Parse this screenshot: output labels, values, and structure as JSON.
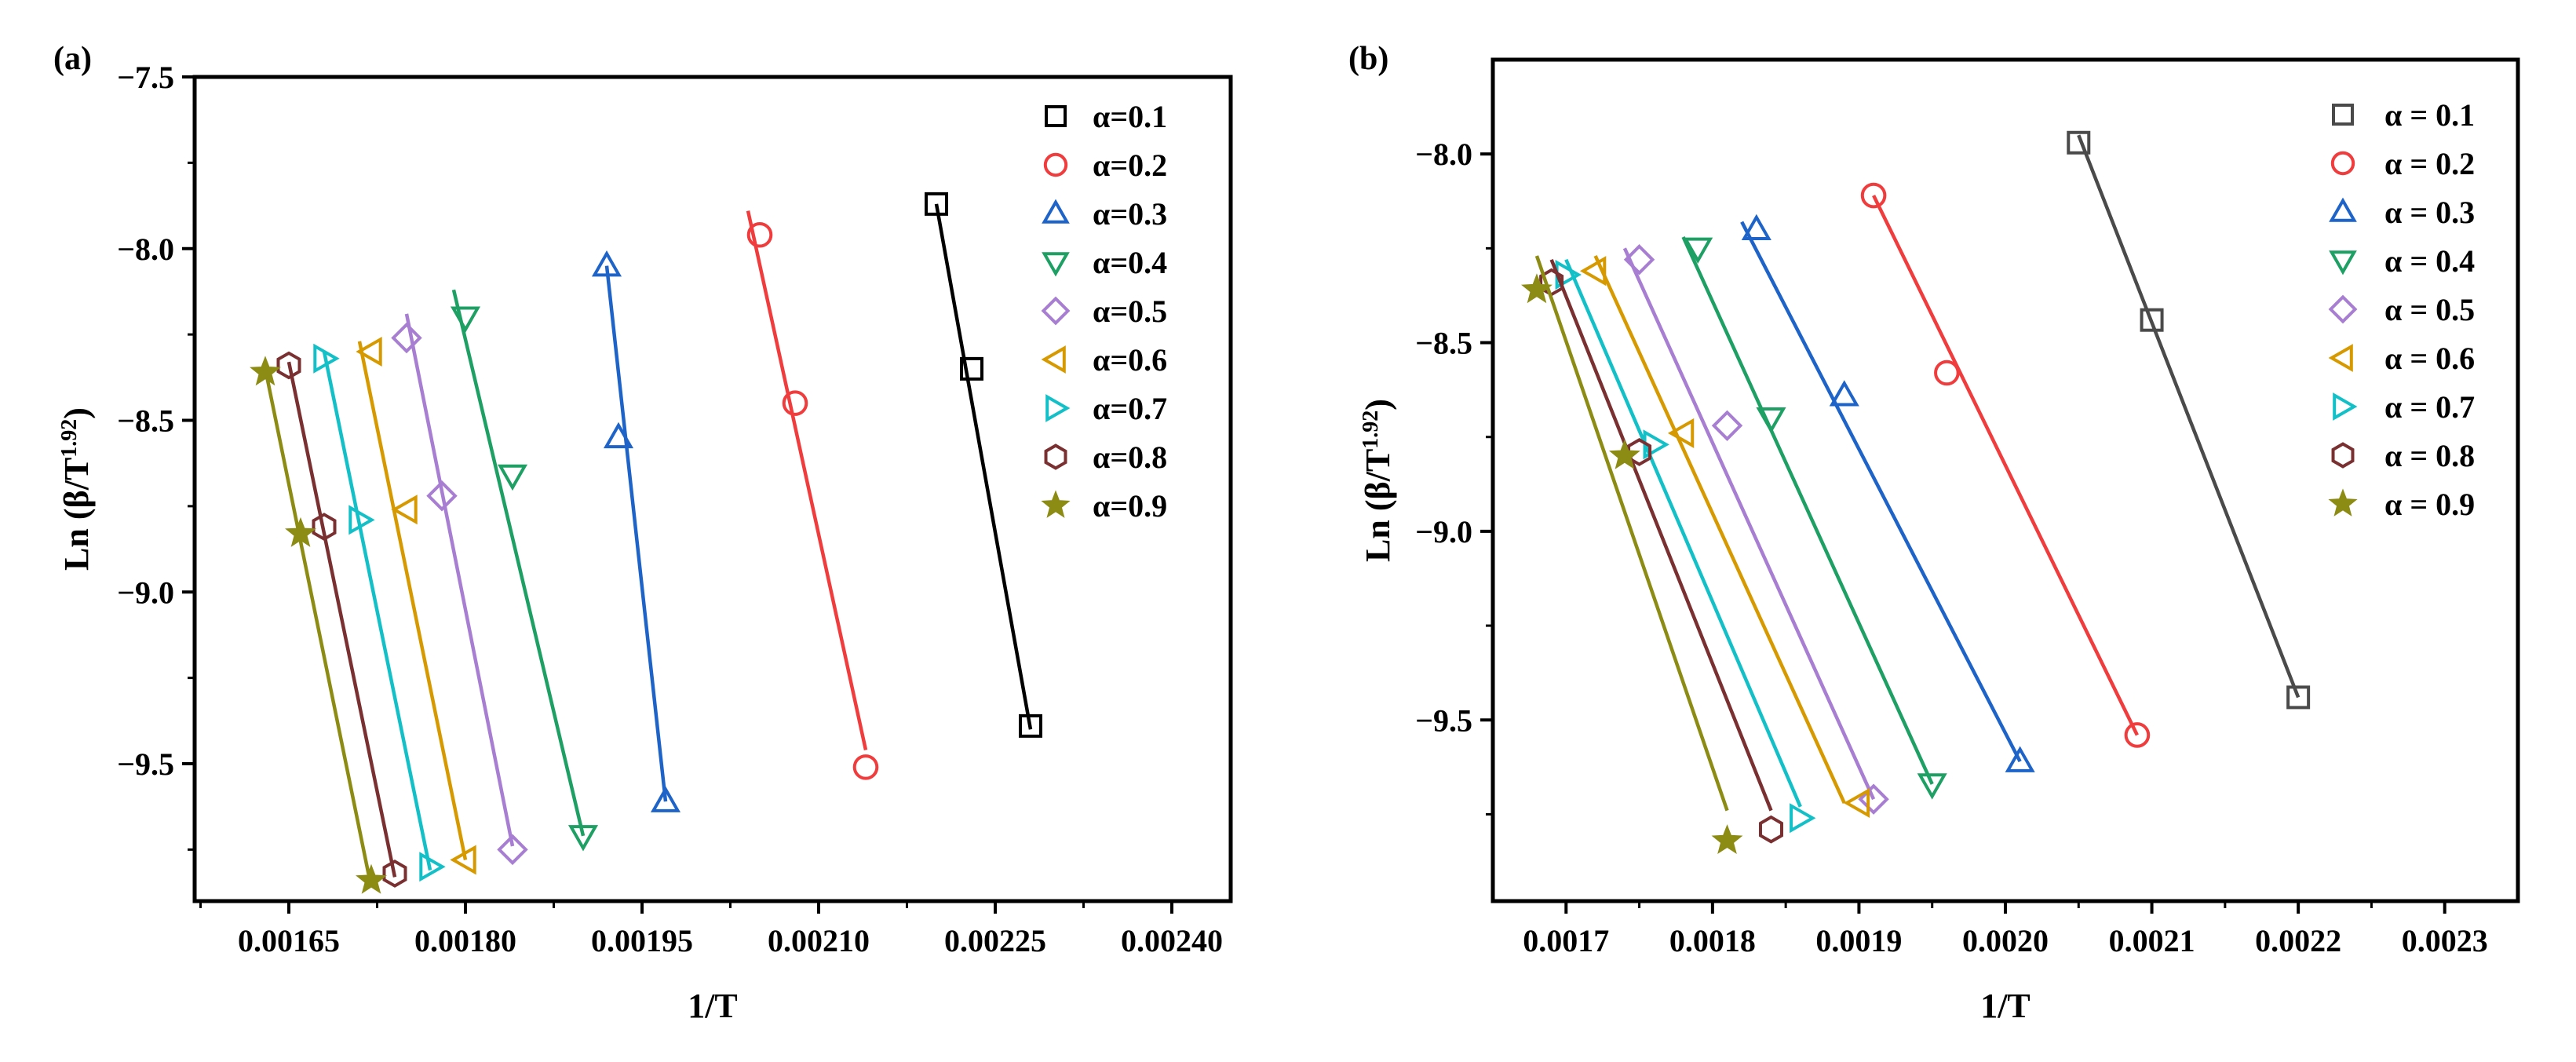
{
  "chart_data": [
    {
      "type": "line",
      "panel_label": "(a)",
      "xlabel": "1/T",
      "ylabel_main": "Ln (β/T",
      "ylabel_sup": "1.92",
      "ylabel_close": ")",
      "xlim": [
        0.00157,
        0.00245
      ],
      "ylim": [
        -9.9,
        -7.5
      ],
      "xticks": [
        0.00165,
        0.0018,
        0.00195,
        0.0021,
        0.00225,
        0.0024
      ],
      "xtick_labels": [
        "0.00165",
        "0.00180",
        "0.00195",
        "0.00210",
        "0.00225",
        "0.00240"
      ],
      "yticks": [
        -7.5,
        -8.0,
        -8.5,
        -9.0,
        -9.5
      ],
      "ytick_labels": [
        "−7.5",
        "−8.0",
        "−8.5",
        "−9.0",
        "−9.5"
      ],
      "legend_position": "top-right",
      "series": [
        {
          "name": "α=0.1",
          "color": "#000000",
          "marker": "square",
          "points": [
            [
              0.0022,
              -7.87
            ],
            [
              0.00223,
              -8.35
            ],
            [
              0.00228,
              -9.39
            ]
          ],
          "fit": [
            [
              0.0022,
              -7.87
            ],
            [
              0.00228,
              -9.4
            ]
          ]
        },
        {
          "name": "α=0.2",
          "color": "#f03c3c",
          "marker": "circle",
          "points": [
            [
              0.00205,
              -7.96
            ],
            [
              0.00208,
              -8.45
            ],
            [
              0.00214,
              -9.51
            ]
          ],
          "fit": [
            [
              0.00204,
              -7.89
            ],
            [
              0.00214,
              -9.46
            ]
          ]
        },
        {
          "name": "α=0.3",
          "color": "#1e64c8",
          "marker": "triangle-up",
          "points": [
            [
              0.00192,
              -8.05
            ],
            [
              0.00193,
              -8.55
            ],
            [
              0.00197,
              -9.61
            ]
          ],
          "fit": [
            [
              0.00192,
              -8.05
            ],
            [
              0.00197,
              -9.61
            ]
          ]
        },
        {
          "name": "α=0.4",
          "color": "#1ea064",
          "marker": "triangle-down",
          "points": [
            [
              0.0018,
              -8.2
            ],
            [
              0.00184,
              -8.66
            ],
            [
              0.0019,
              -9.71
            ]
          ],
          "fit": [
            [
              0.00179,
              -8.12
            ],
            [
              0.0019,
              -9.71
            ]
          ]
        },
        {
          "name": "α=0.5",
          "color": "#a87ed2",
          "marker": "diamond",
          "points": [
            [
              0.00175,
              -8.26
            ],
            [
              0.00178,
              -8.72
            ],
            [
              0.00184,
              -9.75
            ]
          ],
          "fit": [
            [
              0.00175,
              -8.19
            ],
            [
              0.00184,
              -9.74
            ]
          ]
        },
        {
          "name": "α=0.6",
          "color": "#d69a00",
          "marker": "triangle-left",
          "points": [
            [
              0.00172,
              -8.3
            ],
            [
              0.00175,
              -8.76
            ],
            [
              0.0018,
              -9.78
            ]
          ],
          "fit": [
            [
              0.00171,
              -8.27
            ],
            [
              0.0018,
              -9.78
            ]
          ]
        },
        {
          "name": "α=0.7",
          "color": "#14c0c8",
          "marker": "triangle-right",
          "points": [
            [
              0.00168,
              -8.32
            ],
            [
              0.00171,
              -8.79
            ],
            [
              0.00177,
              -9.8
            ]
          ],
          "fit": [
            [
              0.00168,
              -8.3
            ],
            [
              0.00177,
              -9.81
            ]
          ]
        },
        {
          "name": "α=0.8",
          "color": "#7a3030",
          "marker": "hexagon",
          "points": [
            [
              0.00165,
              -8.34
            ],
            [
              0.00168,
              -8.81
            ],
            [
              0.00174,
              -9.82
            ]
          ],
          "fit": [
            [
              0.00165,
              -8.33
            ],
            [
              0.00174,
              -9.83
            ]
          ]
        },
        {
          "name": "α=0.9",
          "color": "#8c8c14",
          "marker": "star",
          "points": [
            [
              0.00163,
              -8.36
            ],
            [
              0.00166,
              -8.83
            ],
            [
              0.00172,
              -9.84
            ]
          ],
          "fit": [
            [
              0.00163,
              -8.35
            ],
            [
              0.00172,
              -9.86
            ]
          ]
        }
      ]
    },
    {
      "type": "line",
      "panel_label": "(b)",
      "xlabel": "1/T",
      "ylabel_main": "Ln (β/T",
      "ylabel_sup": "1.92",
      "ylabel_close": ")",
      "xlim": [
        0.00165,
        0.00235
      ],
      "ylim": [
        -9.98,
        -7.75
      ],
      "xticks": [
        0.0017,
        0.0018,
        0.0019,
        0.002,
        0.0021,
        0.0022,
        0.0023
      ],
      "xtick_labels": [
        "0.0017",
        "0.0018",
        "0.0019",
        "0.0020",
        "0.0021",
        "0.0022",
        "0.0023"
      ],
      "yticks": [
        -8.0,
        -8.5,
        -9.0,
        -9.5
      ],
      "ytick_labels": [
        "−8.0",
        "−8.5",
        "−9.0",
        "−9.5"
      ],
      "legend_position": "top-right",
      "series": [
        {
          "name": "α = 0.1",
          "color": "#4a4a4a",
          "marker": "square",
          "points": [
            [
              0.00205,
              -7.97
            ],
            [
              0.0021,
              -8.44
            ],
            [
              0.0022,
              -9.44
            ]
          ],
          "fit": [
            [
              0.00205,
              -7.95
            ],
            [
              0.0022,
              -9.44
            ]
          ]
        },
        {
          "name": "α = 0.2",
          "color": "#f03c3c",
          "marker": "circle",
          "points": [
            [
              0.00191,
              -8.11
            ],
            [
              0.00196,
              -8.58
            ],
            [
              0.00209,
              -9.54
            ]
          ],
          "fit": [
            [
              0.00191,
              -8.11
            ],
            [
              0.00209,
              -9.54
            ]
          ]
        },
        {
          "name": "α = 0.3",
          "color": "#1e64c8",
          "marker": "triangle-up",
          "points": [
            [
              0.00183,
              -8.2
            ],
            [
              0.00189,
              -8.64
            ],
            [
              0.00201,
              -9.61
            ]
          ],
          "fit": [
            [
              0.00182,
              -8.18
            ],
            [
              0.00201,
              -9.61
            ]
          ]
        },
        {
          "name": "α = 0.4",
          "color": "#1ea064",
          "marker": "triangle-down",
          "points": [
            [
              0.00179,
              -8.25
            ],
            [
              0.00184,
              -8.7
            ],
            [
              0.00195,
              -9.67
            ]
          ],
          "fit": [
            [
              0.00178,
              -8.22
            ],
            [
              0.00195,
              -9.67
            ]
          ]
        },
        {
          "name": "α = 0.5",
          "color": "#a87ed2",
          "marker": "diamond",
          "points": [
            [
              0.00175,
              -8.28
            ],
            [
              0.00181,
              -8.72
            ],
            [
              0.00191,
              -9.71
            ]
          ],
          "fit": [
            [
              0.00174,
              -8.25
            ],
            [
              0.00191,
              -9.71
            ]
          ]
        },
        {
          "name": "α = 0.6",
          "color": "#d69a00",
          "marker": "triangle-left",
          "points": [
            [
              0.00172,
              -8.31
            ],
            [
              0.00178,
              -8.74
            ],
            [
              0.0019,
              -9.72
            ]
          ],
          "fit": [
            [
              0.00172,
              -8.27
            ],
            [
              0.00189,
              -9.72
            ]
          ]
        },
        {
          "name": "α = 0.7",
          "color": "#14c0c8",
          "marker": "triangle-right",
          "points": [
            [
              0.0017,
              -8.32
            ],
            [
              0.00176,
              -8.77
            ],
            [
              0.00186,
              -9.76
            ]
          ],
          "fit": [
            [
              0.0017,
              -8.28
            ],
            [
              0.00186,
              -9.73
            ]
          ]
        },
        {
          "name": "α = 0.8",
          "color": "#7a3030",
          "marker": "hexagon",
          "points": [
            [
              0.00169,
              -8.34
            ],
            [
              0.00175,
              -8.79
            ],
            [
              0.00184,
              -9.79
            ]
          ],
          "fit": [
            [
              0.00169,
              -8.28
            ],
            [
              0.00184,
              -9.74
            ]
          ]
        },
        {
          "name": "α = 0.9",
          "color": "#8c8c14",
          "marker": "star",
          "points": [
            [
              0.00168,
              -8.36
            ],
            [
              0.00174,
              -8.8
            ],
            [
              0.00181,
              -9.82
            ]
          ],
          "fit": [
            [
              0.00168,
              -8.27
            ],
            [
              0.00181,
              -9.74
            ]
          ]
        }
      ]
    }
  ]
}
